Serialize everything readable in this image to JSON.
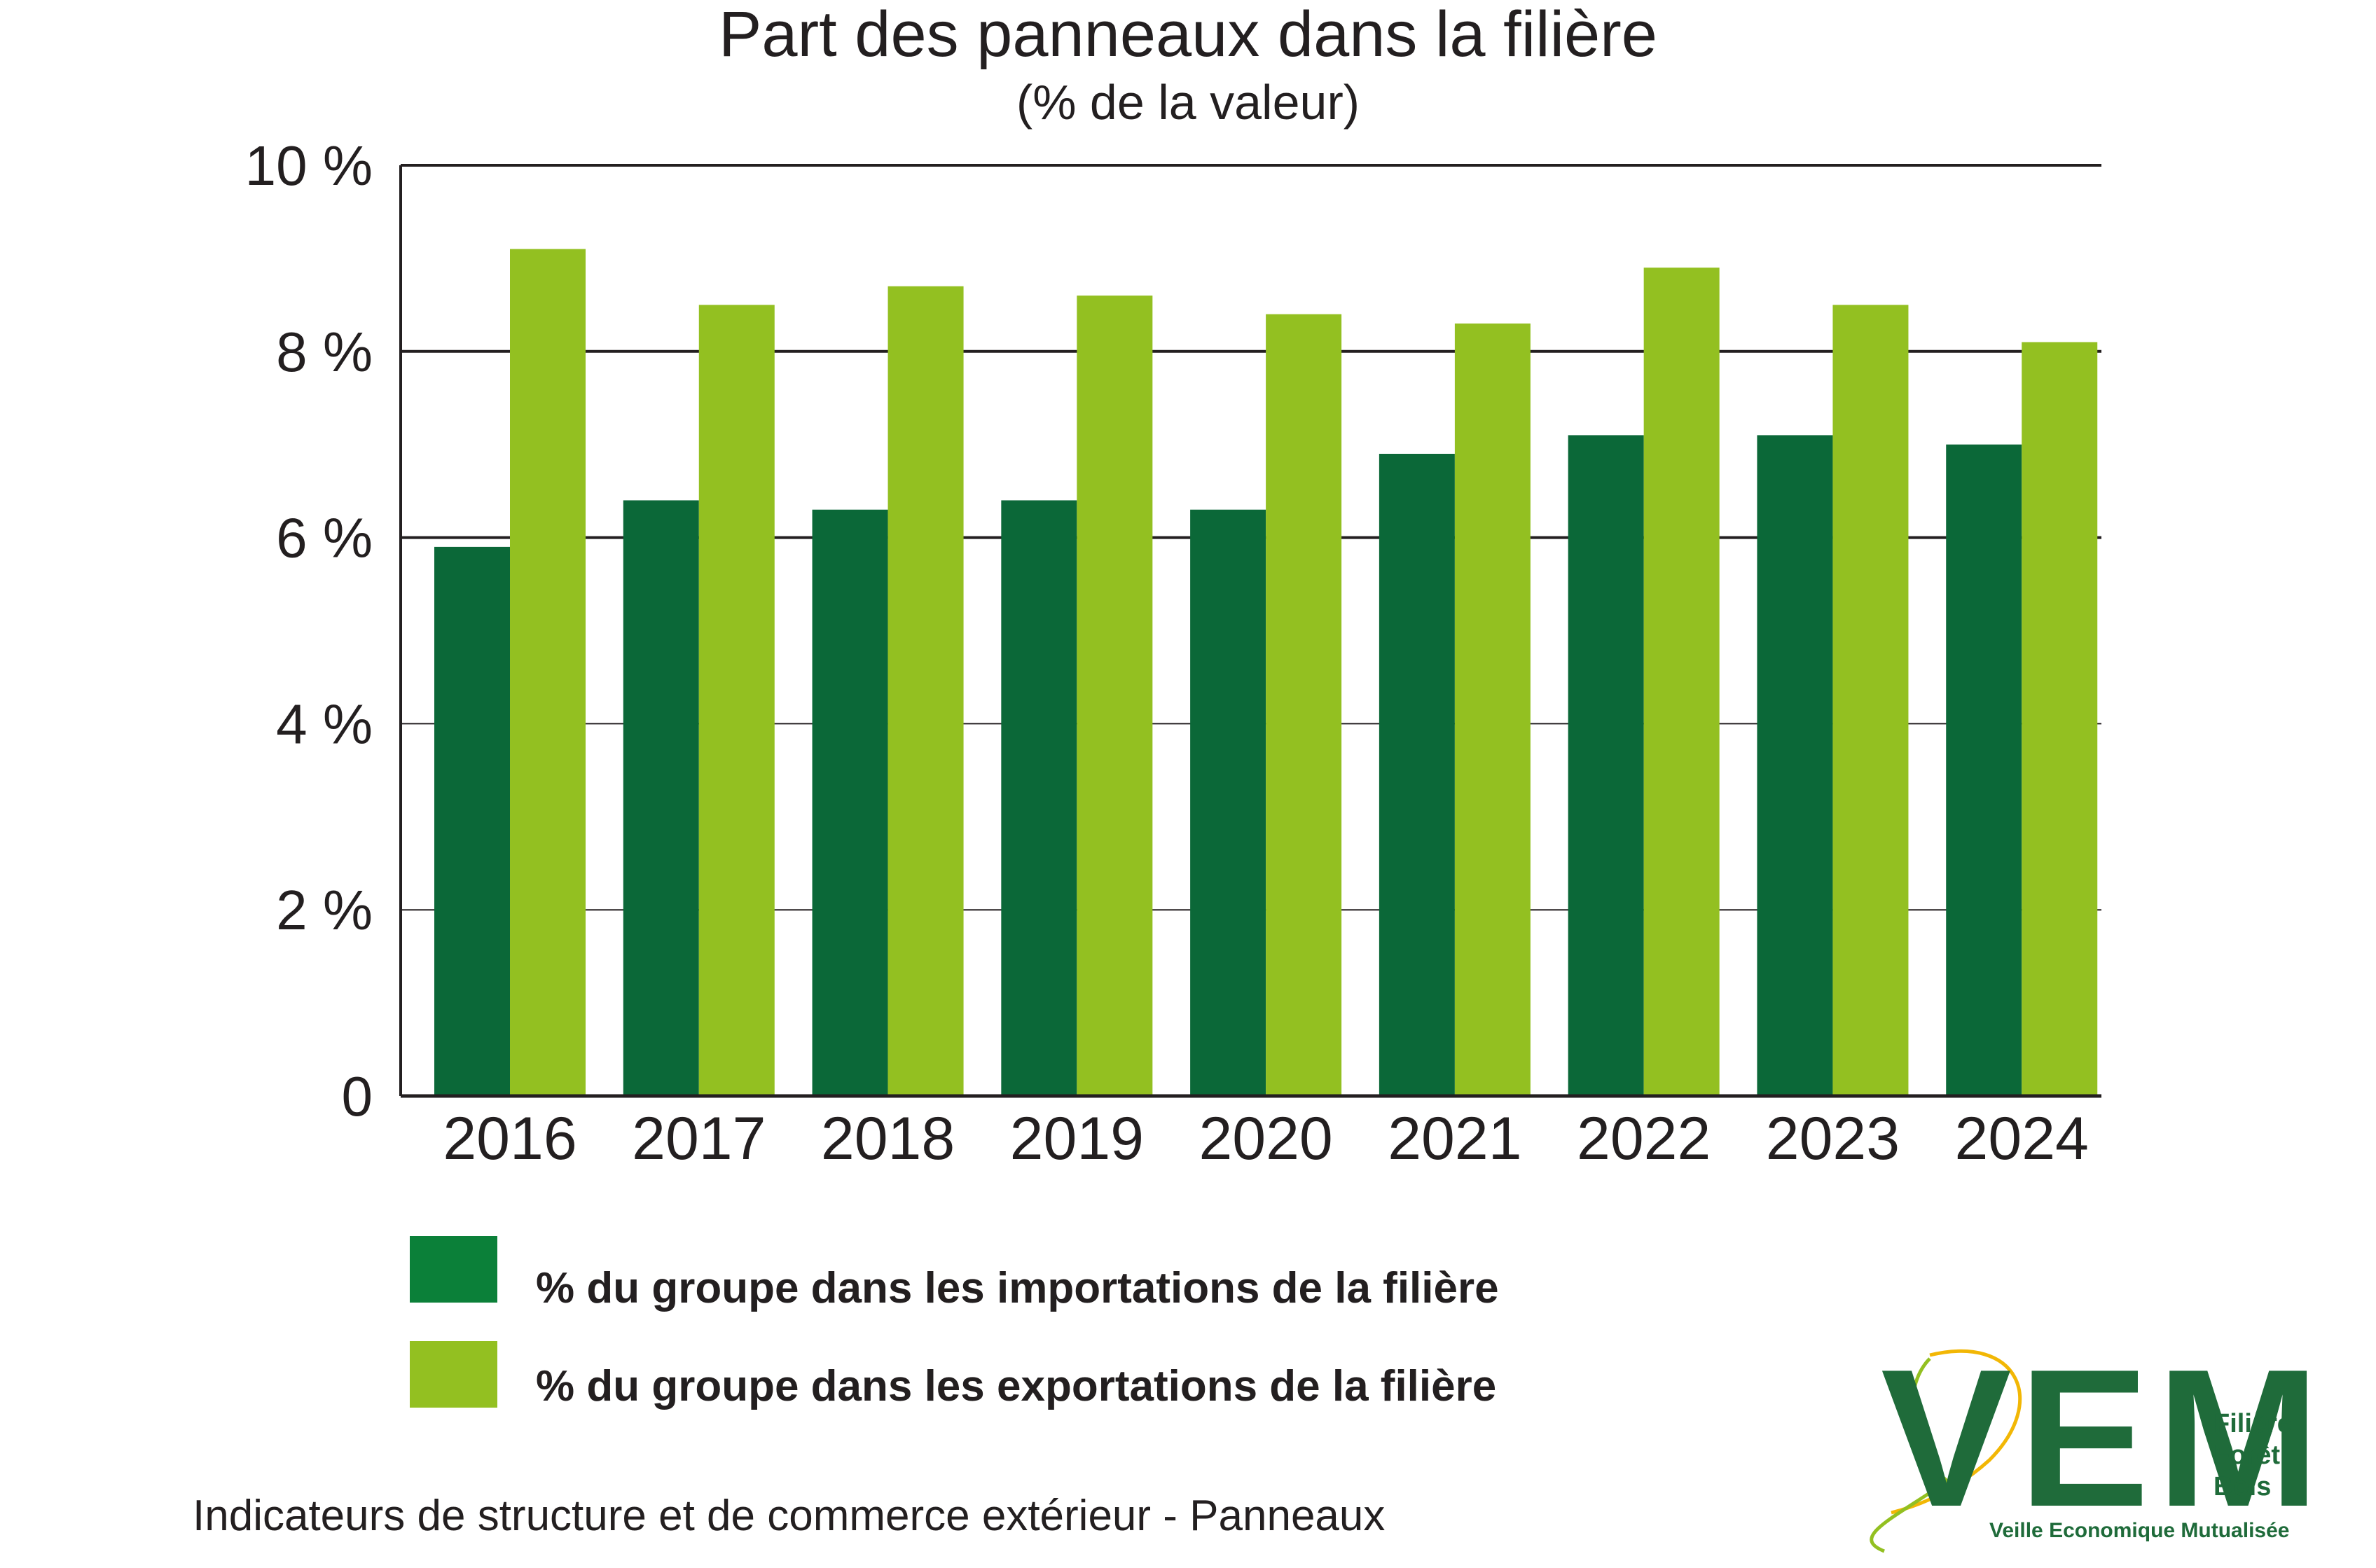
{
  "chart_data": {
    "type": "bar",
    "title": "Part des panneaux dans la filière",
    "subtitle": "(% de la valeur)",
    "categories": [
      "2016",
      "2017",
      "2018",
      "2019",
      "2020",
      "2021",
      "2022",
      "2023",
      "2024"
    ],
    "series": [
      {
        "name": "% du groupe dans les importations de la filière",
        "color": "#0b6838",
        "values": [
          5.9,
          6.4,
          6.3,
          6.4,
          6.3,
          6.9,
          7.1,
          7.1,
          7.0
        ]
      },
      {
        "name": "% du groupe dans les exportations de la filière",
        "color": "#93c021",
        "values": [
          9.1,
          8.5,
          8.7,
          8.6,
          8.4,
          8.3,
          8.9,
          8.5,
          8.1
        ]
      }
    ],
    "ylim": [
      0,
      10
    ],
    "yticks": [
      0,
      2,
      4,
      6,
      8,
      10
    ],
    "ytick_labels": [
      "0",
      "2 %",
      "4 %",
      "6 %",
      "8 %",
      "10 %"
    ],
    "grid": true,
    "legend_position": "bottom-left"
  },
  "footer": "Indicateurs de structure et de commerce extérieur - Panneaux",
  "logo": {
    "letters": "VEM",
    "line1": "Filière",
    "line2": "Forêt",
    "line3": "Bois",
    "tagline": "Veille Economique Mutualisée",
    "dark_color": "#1f6b3a",
    "accent_color": "#f2b705",
    "light_color": "#93c021"
  }
}
